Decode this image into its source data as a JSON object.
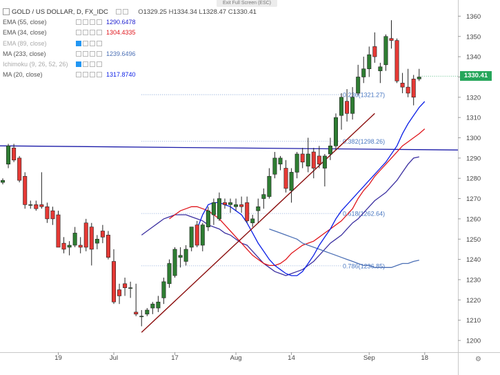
{
  "header": {
    "symbol": "GOLD / US DOLLAR, D, FX_IDC",
    "ohlc": {
      "o_label": "O",
      "o": "1329.25",
      "h_label": "H",
      "h": "1334.34",
      "l_label": "L",
      "l": "1328.47",
      "c_label": "C",
      "c": "1330.41"
    },
    "exit_fullscreen": "Exit Full Screen (ESC)"
  },
  "indicators": [
    {
      "label": "EMA (55, close)",
      "value": "1290.6478",
      "color": "#1c1ccf"
    },
    {
      "label": "EMA (34, close)",
      "value": "1304.4335",
      "color": "#e0151b"
    },
    {
      "label": "EMA (89, close)",
      "value": "",
      "color": "#aaaaaa"
    },
    {
      "label": "MA (233, close)",
      "value": "1239.6496",
      "color": "#4b6fb5"
    },
    {
      "label": "Ichimoku (9, 26, 52, 26)",
      "value": "",
      "color": "#aaaaaa"
    },
    {
      "label": "MA (20, close)",
      "value": "1317.8740",
      "color": "#0a1ee6"
    }
  ],
  "price_tag": "1330.41",
  "colors": {
    "up": "#2e7d32",
    "down": "#e53935",
    "fib": "#4a78c2"
  },
  "chart_data": {
    "type": "candlestick",
    "title": "GOLD / US DOLLAR, D, FX_IDC",
    "ylim": [
      1196,
      1366
    ],
    "y_ticks": [
      1200,
      1210,
      1220,
      1230,
      1240,
      1250,
      1260,
      1270,
      1280,
      1290,
      1300,
      1310,
      1320,
      1330,
      1340,
      1350,
      1360
    ],
    "x_ticks": [
      {
        "label": "19",
        "index": 10
      },
      {
        "label": "Jul",
        "index": 20
      },
      {
        "label": "17",
        "index": 31
      },
      {
        "label": "Aug",
        "index": 42
      },
      {
        "label": "14",
        "index": 52
      },
      {
        "label": "Sep",
        "index": 66
      },
      {
        "label": "18",
        "index": 76
      }
    ],
    "candles": [
      [
        1278,
        1280,
        1277,
        1279
      ],
      [
        1287,
        1297,
        1285,
        1296
      ],
      [
        1295,
        1297,
        1288,
        1289
      ],
      [
        1290,
        1291,
        1278,
        1279
      ],
      [
        1281,
        1283,
        1265,
        1267
      ],
      [
        1267,
        1269,
        1265,
        1267
      ],
      [
        1267,
        1269,
        1264,
        1265
      ],
      [
        1267,
        1283,
        1265,
        1266
      ],
      [
        1266,
        1268,
        1258,
        1260
      ],
      [
        1264,
        1266,
        1257,
        1260
      ],
      [
        1262,
        1264,
        1246,
        1246
      ],
      [
        1248,
        1251,
        1243,
        1245
      ],
      [
        1246,
        1249,
        1242,
        1247
      ],
      [
        1247,
        1256,
        1246,
        1253
      ],
      [
        1247,
        1251,
        1243,
        1246
      ],
      [
        1258,
        1260,
        1244,
        1246
      ],
      [
        1256,
        1258,
        1237,
        1245
      ],
      [
        1248,
        1252,
        1245,
        1250
      ],
      [
        1254,
        1257,
        1248,
        1251
      ],
      [
        1252,
        1254,
        1240,
        1241
      ],
      [
        1239,
        1245,
        1218,
        1219
      ],
      [
        1225,
        1228,
        1218,
        1222
      ],
      [
        1228,
        1231,
        1222,
        1226
      ],
      [
        1226,
        1229,
        1221,
        1226
      ],
      [
        1214,
        1228,
        1212,
        1213
      ],
      [
        1212,
        1215,
        1207,
        1212
      ],
      [
        1213,
        1216,
        1212,
        1215
      ],
      [
        1216,
        1219,
        1213,
        1218
      ],
      [
        1216,
        1222,
        1214,
        1219
      ],
      [
        1221,
        1231,
        1218,
        1229
      ],
      [
        1228,
        1240,
        1226,
        1238
      ],
      [
        1232,
        1246,
        1231,
        1245
      ],
      [
        1241,
        1246,
        1236,
        1242
      ],
      [
        1239,
        1247,
        1237,
        1245
      ],
      [
        1246,
        1256,
        1244,
        1256
      ],
      [
        1257,
        1259,
        1246,
        1247
      ],
      [
        1247,
        1258,
        1244,
        1257
      ],
      [
        1256,
        1266,
        1254,
        1264
      ],
      [
        1262,
        1270,
        1257,
        1268
      ],
      [
        1260,
        1273,
        1259,
        1270
      ],
      [
        1268,
        1270,
        1265,
        1267
      ],
      [
        1267,
        1270,
        1263,
        1268
      ],
      [
        1266,
        1270,
        1264,
        1267
      ],
      [
        1267,
        1271,
        1263,
        1266
      ],
      [
        1268,
        1271,
        1258,
        1259
      ],
      [
        1258,
        1262,
        1256,
        1260
      ],
      [
        1264,
        1270,
        1258,
        1266
      ],
      [
        1270,
        1275,
        1265,
        1272
      ],
      [
        1271,
        1285,
        1270,
        1281
      ],
      [
        1282,
        1293,
        1280,
        1290
      ],
      [
        1287,
        1291,
        1284,
        1290
      ],
      [
        1285,
        1289,
        1273,
        1275
      ],
      [
        1274,
        1285,
        1268,
        1283
      ],
      [
        1283,
        1293,
        1280,
        1292
      ],
      [
        1292,
        1295,
        1285,
        1288
      ],
      [
        1286,
        1300,
        1283,
        1292
      ],
      [
        1293,
        1295,
        1280,
        1285
      ],
      [
        1291,
        1296,
        1285,
        1287
      ],
      [
        1285,
        1292,
        1276,
        1291
      ],
      [
        1292,
        1300,
        1289,
        1296
      ],
      [
        1296,
        1312,
        1294,
        1310
      ],
      [
        1311,
        1322,
        1304,
        1320
      ],
      [
        1318,
        1324,
        1308,
        1312
      ],
      [
        1312,
        1325,
        1309,
        1320
      ],
      [
        1322,
        1336,
        1321,
        1330
      ],
      [
        1330,
        1340,
        1327,
        1334
      ],
      [
        1334,
        1345,
        1330,
        1341
      ],
      [
        1345,
        1352,
        1337,
        1340
      ],
      [
        1333,
        1337,
        1327,
        1335
      ],
      [
        1336,
        1351,
        1333,
        1350
      ],
      [
        1349,
        1358,
        1344,
        1348
      ],
      [
        1348,
        1349,
        1327,
        1328
      ],
      [
        1327,
        1332,
        1322,
        1325
      ],
      [
        1325,
        1334,
        1320,
        1322
      ],
      [
        1329,
        1331,
        1316,
        1320
      ],
      [
        1329,
        1334,
        1328,
        1330
      ]
    ],
    "series": [
      {
        "name": "EMA (55, close)",
        "values": [
          1252,
          1254,
          1256,
          1258,
          1260,
          1261,
          1262,
          1262,
          1262,
          1261,
          1260,
          1259,
          1257,
          1256,
          1255,
          1253,
          1252,
          1250,
          1248,
          1247,
          1244,
          1241,
          1238,
          1236,
          1234,
          1233,
          1232,
          1233,
          1234,
          1235,
          1237,
          1239,
          1242,
          1245,
          1248,
          1250,
          1252,
          1255,
          1258,
          1260,
          1263,
          1266,
          1269,
          1271,
          1273,
          1276,
          1279,
          1283,
          1287,
          1290,
          1290.6
        ]
      },
      {
        "name": "EMA (34, close)",
        "values": [
          1260,
          1262,
          1264,
          1265,
          1266,
          1266,
          1265,
          1264,
          1262,
          1260,
          1257,
          1254,
          1251,
          1248,
          1245,
          1242,
          1240,
          1238,
          1237,
          1237,
          1238,
          1240,
          1243,
          1245,
          1247,
          1248,
          1249,
          1251,
          1253,
          1255,
          1257,
          1259,
          1262,
          1265,
          1270,
          1274,
          1277,
          1281,
          1284,
          1287,
          1290,
          1293,
          1296,
          1298,
          1300,
          1302,
          1304.4
        ]
      },
      {
        "name": "MA (233, close)",
        "values": [
          1255,
          1254,
          1253,
          1252,
          1251,
          1250,
          1248,
          1247,
          1246,
          1245,
          1244,
          1243,
          1242,
          1241,
          1240,
          1239,
          1238,
          1237,
          1237,
          1236,
          1236,
          1236,
          1236,
          1237,
          1238,
          1238,
          1239,
          1239.6
        ]
      },
      {
        "name": "MA (20, close)",
        "values": [
          1255,
          1262,
          1267,
          1268,
          1268,
          1267,
          1266,
          1264,
          1262,
          1258,
          1253,
          1248,
          1244,
          1240,
          1237,
          1235,
          1233,
          1232,
          1232,
          1234,
          1238,
          1242,
          1247,
          1251,
          1255,
          1260,
          1264,
          1267,
          1270,
          1273,
          1276,
          1279,
          1282,
          1285,
          1288,
          1292,
          1296,
          1302,
          1307,
          1311,
          1315,
          1317.9
        ]
      }
    ],
    "horizontal_line": {
      "value": 1295
    },
    "fibonacci": [
      {
        "label": "0.236(1321.27)",
        "value": 1321.27
      },
      {
        "label": "0.382(1298.26)",
        "value": 1298.26
      },
      {
        "label": "0.618(1262.64)",
        "value": 1262.64
      },
      {
        "label": "0.786(1236.85)",
        "value": 1236.85
      }
    ],
    "trendline": [
      {
        "index": 25,
        "value": 1204
      },
      {
        "index": 67,
        "value": 1312
      }
    ]
  }
}
